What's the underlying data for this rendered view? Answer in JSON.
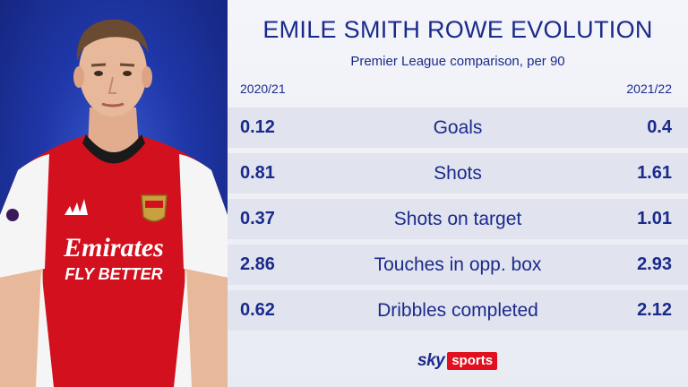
{
  "header": {
    "title": "EMILE SMITH ROWE EVOLUTION",
    "subtitle": "Premier League comparison, per 90"
  },
  "seasons": {
    "left": "2020/21",
    "right": "2021/22"
  },
  "stats": [
    {
      "label": "Goals",
      "left": "0.12",
      "right": "0.4"
    },
    {
      "label": "Shots",
      "left": "0.81",
      "right": "1.61"
    },
    {
      "label": "Shots on target",
      "left": "0.37",
      "right": "1.01"
    },
    {
      "label": "Touches in opp. box",
      "left": "2.86",
      "right": "2.93"
    },
    {
      "label": "Dribbles completed",
      "left": "0.62",
      "right": "2.12"
    }
  ],
  "shirt": {
    "sponsor_line1": "Emirates",
    "sponsor_line2": "FLY BETTER"
  },
  "logo": {
    "sky": "sky",
    "sports": "sports"
  },
  "colors": {
    "navy": "#1a2a8c",
    "arsenal_red": "#d2101e",
    "sky_red": "#e0101e"
  }
}
